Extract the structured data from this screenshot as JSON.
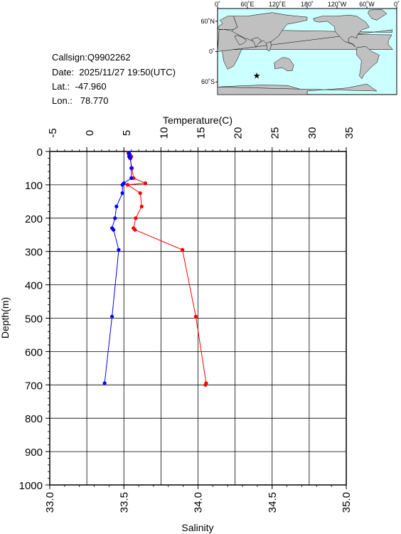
{
  "info": {
    "callsign": "Callsign:Q9902262",
    "date": "Date:  2025/11/27 19:50(UTC)",
    "lat": "Lat.:  -47.960",
    "lon": "Lon.:   78.770"
  },
  "map": {
    "lon_labels": [
      "0˚",
      "60˚E",
      "120˚E",
      "180˚",
      "120˚W",
      "60˚W",
      "0˚"
    ],
    "lat_labels": [
      "60˚N",
      "0˚",
      "60˚S"
    ],
    "ocean_color": "#ccffff",
    "land_color": "#c0c0c0",
    "marker": {
      "lon": 78.77,
      "lat": -47.96,
      "color": "#ff0000",
      "icon": "star-icon"
    }
  },
  "chart_data": {
    "type": "line",
    "top_axis": {
      "label": "Temperature(C)",
      "range": [
        -5,
        35
      ],
      "ticks": [
        "-5",
        "0",
        "5",
        "10",
        "15",
        "20",
        "25",
        "30",
        "35"
      ]
    },
    "bottom_axis": {
      "label": "Salinity",
      "range": [
        33.0,
        35.0
      ],
      "ticks": [
        "33.0",
        "33.5",
        "34.0",
        "34.5",
        "35.0"
      ]
    },
    "left_axis": {
      "label": "Depth(m)",
      "range": [
        0,
        1000
      ],
      "reversed": true,
      "ticks": [
        "0",
        "100",
        "200",
        "300",
        "400",
        "500",
        "600",
        "700",
        "800",
        "900",
        "1000"
      ]
    },
    "grid": true,
    "series": [
      {
        "axis": "temperature",
        "color": "#ff0000",
        "points": [
          {
            "x": 5.6,
            "y": 5
          },
          {
            "x": 5.7,
            "y": 10
          },
          {
            "x": 6.0,
            "y": 15
          },
          {
            "x": 5.8,
            "y": 20
          },
          {
            "x": 6.1,
            "y": 50
          },
          {
            "x": 6.3,
            "y": 80
          },
          {
            "x": 7.9,
            "y": 95
          },
          {
            "x": 5.5,
            "y": 100
          },
          {
            "x": 7.2,
            "y": 125
          },
          {
            "x": 7.4,
            "y": 165
          },
          {
            "x": 6.6,
            "y": 200
          },
          {
            "x": 6.3,
            "y": 230
          },
          {
            "x": 6.5,
            "y": 235
          },
          {
            "x": 12.9,
            "y": 295
          },
          {
            "x": 14.7,
            "y": 495
          },
          {
            "x": 16.1,
            "y": 695
          },
          {
            "x": 16.0,
            "y": 700
          }
        ]
      },
      {
        "axis": "salinity",
        "color": "#0000ff",
        "points": [
          {
            "x": 33.535,
            "y": 5
          },
          {
            "x": 33.54,
            "y": 10
          },
          {
            "x": 33.535,
            "y": 15
          },
          {
            "x": 33.545,
            "y": 20
          },
          {
            "x": 33.55,
            "y": 50
          },
          {
            "x": 33.55,
            "y": 80
          },
          {
            "x": 33.5,
            "y": 95
          },
          {
            "x": 33.49,
            "y": 100
          },
          {
            "x": 33.49,
            "y": 125
          },
          {
            "x": 33.45,
            "y": 165
          },
          {
            "x": 33.44,
            "y": 200
          },
          {
            "x": 33.42,
            "y": 230
          },
          {
            "x": 33.43,
            "y": 235
          },
          {
            "x": 33.465,
            "y": 295
          },
          {
            "x": 33.42,
            "y": 495
          },
          {
            "x": 33.37,
            "y": 695
          }
        ]
      }
    ]
  }
}
